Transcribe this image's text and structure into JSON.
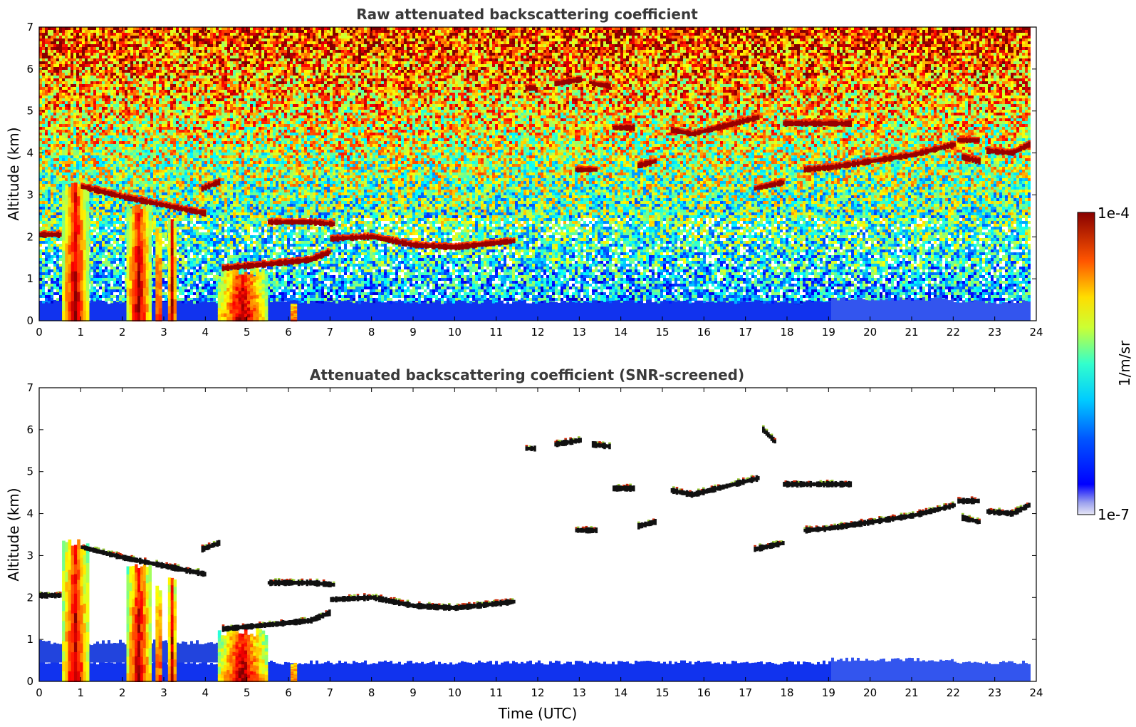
{
  "chart_data": [
    {
      "type": "heatmap",
      "title": "Raw attenuated backscattering coefficient",
      "ylabel": "Altitude (km)",
      "xlabel": "",
      "xlim": [
        0,
        24
      ],
      "ylim": [
        0,
        7
      ],
      "xticks": [
        "0",
        "1",
        "2",
        "3",
        "4",
        "5",
        "6",
        "7",
        "8",
        "9",
        "10",
        "11",
        "12",
        "13",
        "14",
        "15",
        "16",
        "17",
        "18",
        "19",
        "20",
        "21",
        "22",
        "23",
        "24"
      ],
      "yticks": [
        "0",
        "1",
        "2",
        "3",
        "4",
        "5",
        "6",
        "7"
      ],
      "screened": false,
      "cloud_layers": [
        {
          "t": [
            0.0,
            0.5
          ],
          "alt": [
            2.05,
            2.05
          ]
        },
        {
          "t": [
            1.0,
            2.0,
            3.0,
            4.0
          ],
          "alt": [
            3.2,
            2.95,
            2.75,
            2.55
          ]
        },
        {
          "t": [
            3.9,
            4.3
          ],
          "alt": [
            3.15,
            3.3
          ]
        },
        {
          "t": [
            4.4,
            5.5,
            6.5,
            7.0
          ],
          "alt": [
            1.25,
            1.35,
            1.45,
            1.65
          ]
        },
        {
          "t": [
            5.5,
            6.5,
            7.1
          ],
          "alt": [
            2.35,
            2.35,
            2.3
          ]
        },
        {
          "t": [
            7.0,
            8.0,
            9.0,
            10.0,
            11.4
          ],
          "alt": [
            1.95,
            2.0,
            1.8,
            1.75,
            1.9
          ]
        },
        {
          "t": [
            11.7,
            11.9
          ],
          "alt": [
            5.55,
            5.55
          ]
        },
        {
          "t": [
            12.4,
            13.0
          ],
          "alt": [
            5.65,
            5.75
          ]
        },
        {
          "t": [
            13.3,
            13.7
          ],
          "alt": [
            5.65,
            5.6
          ]
        },
        {
          "t": [
            13.8,
            14.3
          ],
          "alt": [
            4.6,
            4.6
          ]
        },
        {
          "t": [
            12.9,
            13.4
          ],
          "alt": [
            3.6,
            3.6
          ]
        },
        {
          "t": [
            14.4,
            14.8
          ],
          "alt": [
            3.7,
            3.8
          ]
        },
        {
          "t": [
            15.2,
            15.7,
            16.5,
            17.3
          ],
          "alt": [
            4.55,
            4.45,
            4.65,
            4.85
          ]
        },
        {
          "t": [
            17.4,
            17.7
          ],
          "alt": [
            6.0,
            5.7
          ]
        },
        {
          "t": [
            17.9,
            18.5,
            19.5
          ],
          "alt": [
            4.7,
            4.7,
            4.7
          ]
        },
        {
          "t": [
            17.2,
            17.9
          ],
          "alt": [
            3.15,
            3.3
          ]
        },
        {
          "t": [
            18.4,
            19.0,
            20.0,
            21.0,
            22.0
          ],
          "alt": [
            3.6,
            3.65,
            3.8,
            3.95,
            4.2
          ]
        },
        {
          "t": [
            22.2,
            22.6
          ],
          "alt": [
            3.9,
            3.8
          ]
        },
        {
          "t": [
            22.1,
            22.6
          ],
          "alt": [
            4.3,
            4.3
          ]
        },
        {
          "t": [
            22.8,
            23.4,
            23.8
          ],
          "alt": [
            4.05,
            4.0,
            4.2
          ]
        }
      ],
      "precip_columns": [
        {
          "t": [
            0.55,
            1.2
          ],
          "top_km": 3.4
        },
        {
          "t": [
            2.1,
            2.7
          ],
          "top_km": 2.9
        },
        {
          "t": [
            2.8,
            2.95
          ],
          "top_km": 2.3
        },
        {
          "t": [
            3.1,
            3.3
          ],
          "top_km": 2.5
        },
        {
          "t": [
            4.3,
            5.5
          ],
          "top_km": 1.3
        },
        {
          "t": [
            6.05,
            6.2
          ],
          "top_km": 0.6
        }
      ],
      "boundary_layer_top_km": 0.45
    },
    {
      "type": "heatmap",
      "title": "Attenuated backscattering coefficient (SNR-screened)",
      "ylabel": "Altitude (km)",
      "xlabel": "Time (UTC)",
      "xlim": [
        0,
        24
      ],
      "ylim": [
        0,
        7
      ],
      "xticks": [
        "0",
        "1",
        "2",
        "3",
        "4",
        "5",
        "6",
        "7",
        "8",
        "9",
        "10",
        "11",
        "12",
        "13",
        "14",
        "15",
        "16",
        "17",
        "18",
        "19",
        "20",
        "21",
        "22",
        "23",
        "24"
      ],
      "yticks": [
        "0",
        "1",
        "2",
        "3",
        "4",
        "5",
        "6",
        "7"
      ],
      "screened": true
    }
  ],
  "colorbar": {
    "label": "1/m/sr",
    "max_label": "1e-4",
    "min_label": "1e-7",
    "scale": "log",
    "colormap": "jet"
  }
}
